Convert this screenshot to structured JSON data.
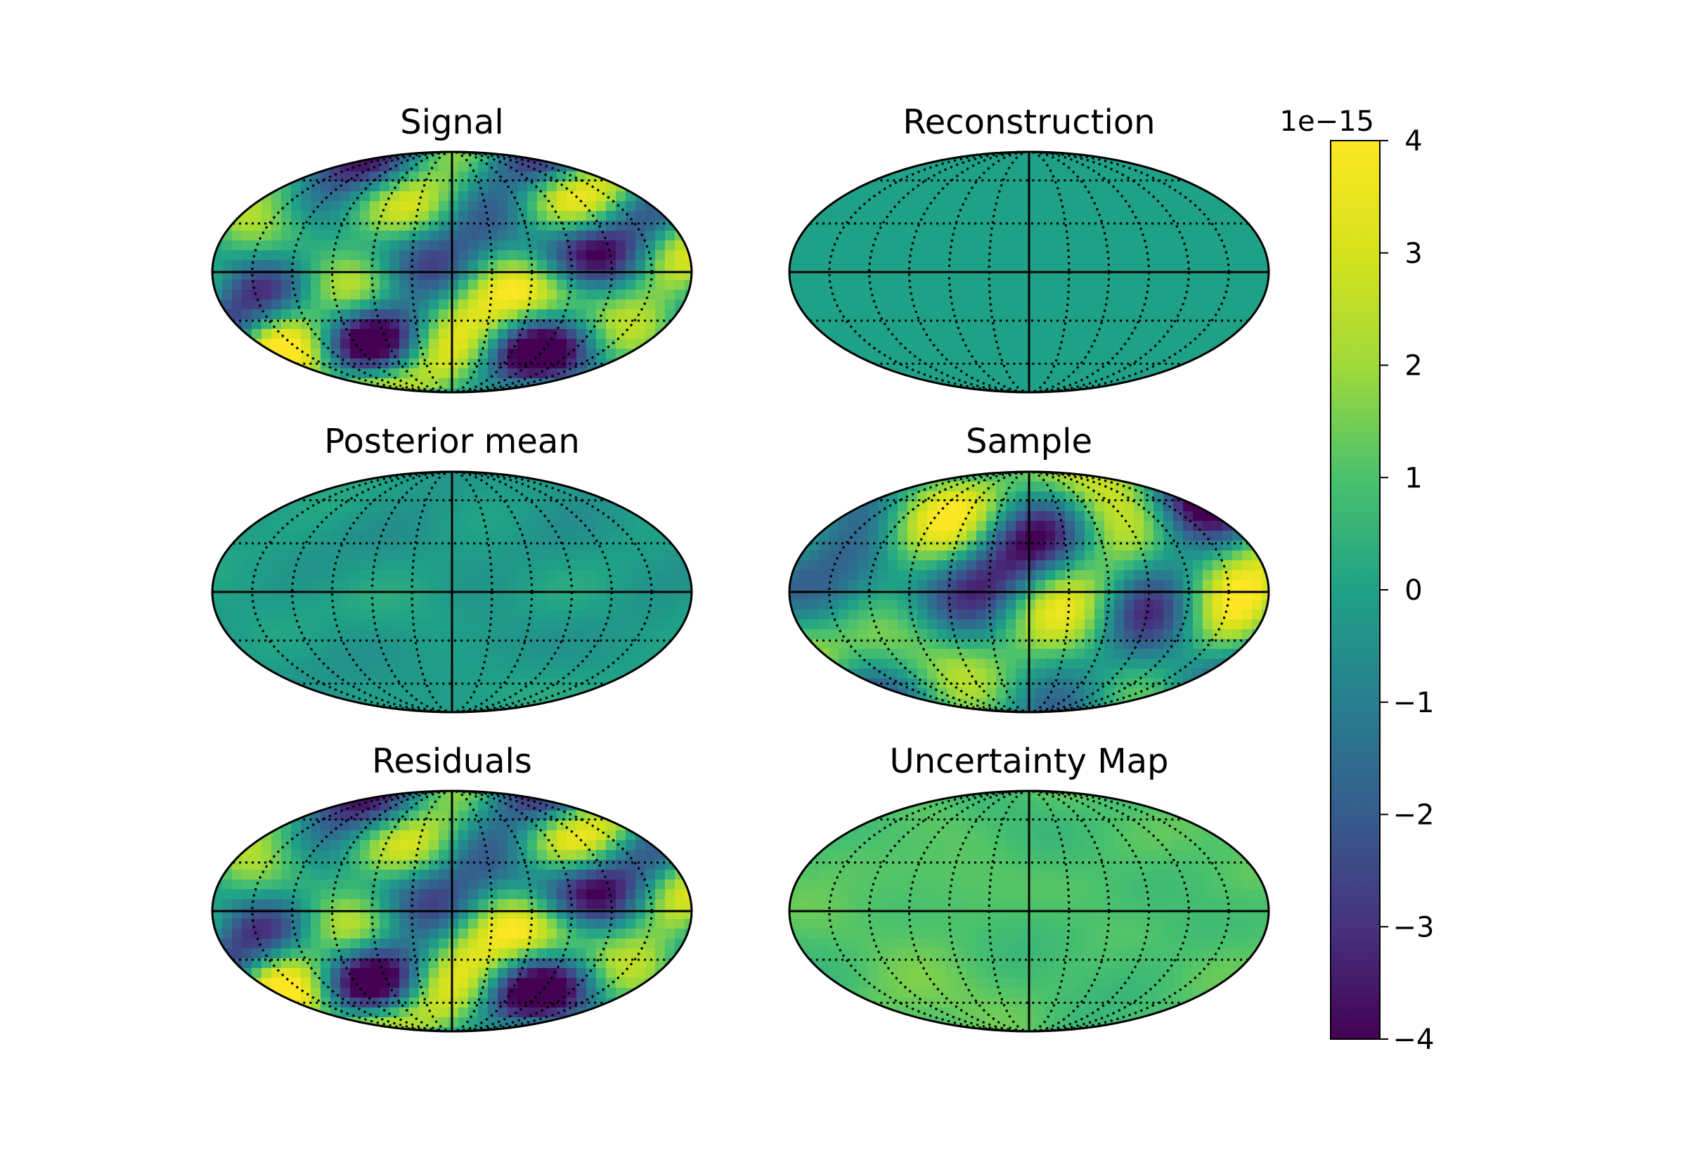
{
  "chart_data": {
    "type": "heatmap",
    "projection": "mollweide",
    "graticule": {
      "meridians_deg": [
        -150,
        -120,
        -90,
        -60,
        -30,
        0,
        30,
        60,
        90,
        120,
        150,
        180
      ],
      "parallels_deg": [
        -60,
        -30,
        0,
        30,
        60
      ]
    },
    "colormap": "viridis",
    "colorbar": {
      "vmin": -4,
      "vmax": 4,
      "ticks": [
        {
          "value": 4,
          "label": "4"
        },
        {
          "value": 3,
          "label": "3"
        },
        {
          "value": 2,
          "label": "2"
        },
        {
          "value": 1,
          "label": "1"
        },
        {
          "value": 0,
          "label": "0"
        },
        {
          "value": -1,
          "label": "−1"
        },
        {
          "value": -2,
          "label": "−2"
        },
        {
          "value": -3,
          "label": "−3"
        },
        {
          "value": -4,
          "label": "−4"
        }
      ],
      "offset_text": "1e−15"
    },
    "panels": [
      {
        "id": "signal",
        "title": "Signal",
        "mean": 0.0,
        "amplitude": 1.6,
        "seed": 11
      },
      {
        "id": "reconstruction",
        "title": "Reconstruction",
        "mean": 0.0,
        "amplitude": 0.0,
        "seed": 0
      },
      {
        "id": "posterior-mean",
        "title": "Posterior mean",
        "mean": -0.15,
        "amplitude": 0.18,
        "seed": 23
      },
      {
        "id": "sample",
        "title": "Sample",
        "mean": 0.0,
        "amplitude": 1.6,
        "seed": 37
      },
      {
        "id": "residuals",
        "title": "Residuals",
        "mean": 0.0,
        "amplitude": 1.6,
        "seed": 11
      },
      {
        "id": "uncertainty-map",
        "title": "Uncertainty Map",
        "mean": 1.0,
        "amplitude": 0.22,
        "seed": 53
      }
    ]
  }
}
